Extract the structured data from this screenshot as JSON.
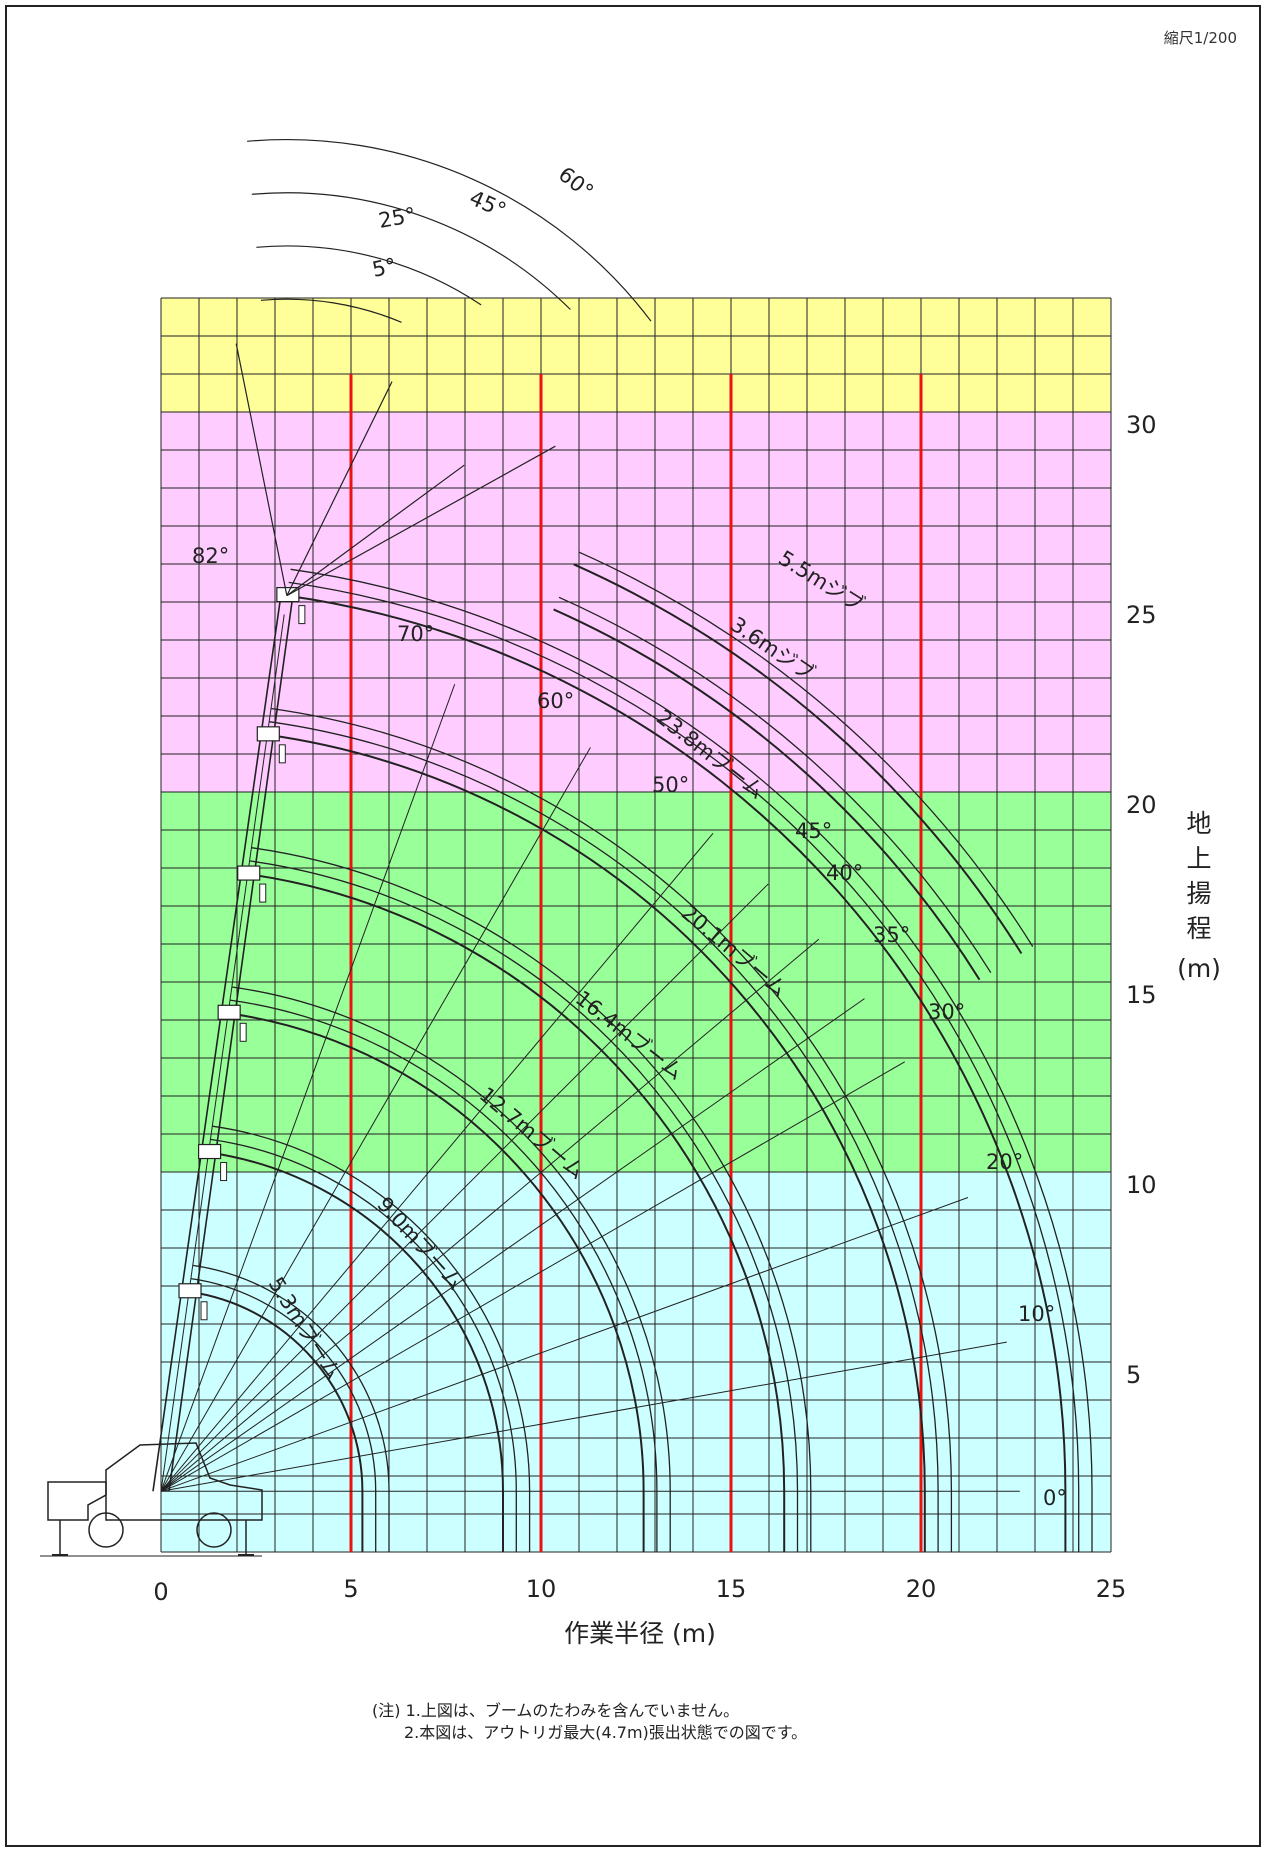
{
  "scale_note": "縮尺1/200",
  "chart_data": {
    "type": "diagram",
    "xlabel": "作業半径 (m)",
    "ylabel_chars": [
      "地",
      "上",
      "揚",
      "程"
    ],
    "ylabel_unit": "(m)",
    "x_ticks": [
      "0",
      "5",
      "10",
      "15",
      "20",
      "25"
    ],
    "y_ticks": [
      "5",
      "10",
      "15",
      "20",
      "25",
      "30"
    ],
    "xlim": [
      0,
      25
    ],
    "ylim": [
      0,
      33
    ],
    "grid": true,
    "bands": [
      {
        "from": 0,
        "to": 10,
        "color": "#ccffff"
      },
      {
        "from": 10,
        "to": 20,
        "color": "#99ff99"
      },
      {
        "from": 20,
        "to": 30,
        "color": "#ffccff"
      },
      {
        "from": 30,
        "to": 33,
        "color": "#ffff99"
      }
    ],
    "red_lines_x": [
      5,
      10,
      15,
      20
    ],
    "boom_pivot": {
      "x": 0,
      "y": 1.6
    },
    "booms": [
      {
        "label": "5.3mブーム",
        "length": 5.3
      },
      {
        "label": "9.0mブーム",
        "length": 9.0
      },
      {
        "label": "12.7mブーム",
        "length": 12.7
      },
      {
        "label": "16.4mブーム",
        "length": 16.4
      },
      {
        "label": "20.1mブーム",
        "length": 20.1
      },
      {
        "label": "23.8mブーム",
        "length": 23.8
      }
    ],
    "jibs": [
      "3.6mジブ",
      "5.5mジブ"
    ],
    "boom_angles": [
      "0°",
      "10°",
      "20°",
      "30°",
      "35°",
      "40°",
      "45°",
      "50°",
      "60°",
      "70°",
      "82°"
    ],
    "jib_offset_angles": [
      "5°",
      "25°",
      "45°",
      "60°"
    ]
  },
  "notes": [
    "(注) 1.上図は、ブームのたわみを含んでいません。",
    "2.本図は、アウトリガ最大(4.7m)張出状態での図です。"
  ]
}
